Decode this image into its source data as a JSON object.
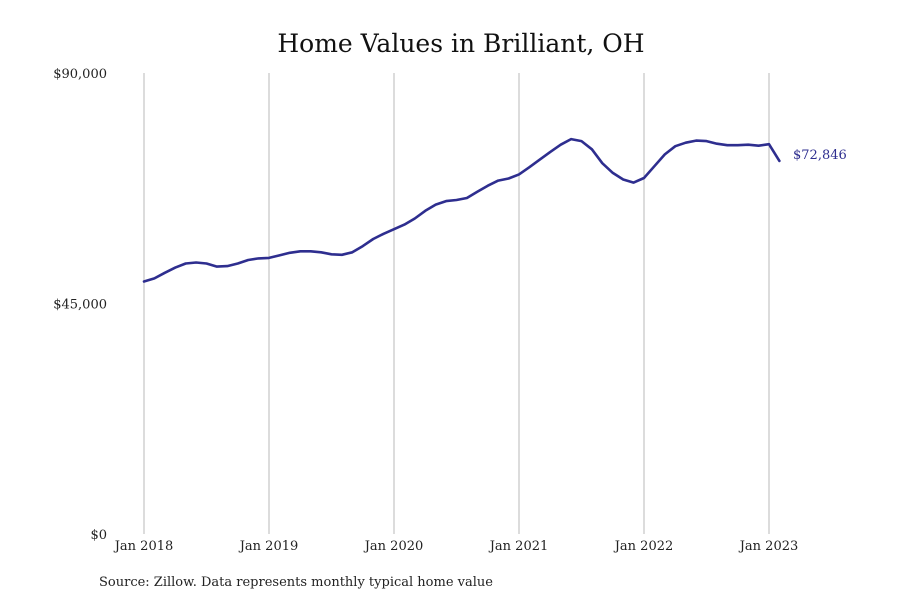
{
  "chart_data": {
    "type": "line",
    "title": "Home Values in Brilliant, OH",
    "xlabel": "",
    "ylabel": "",
    "ylim": [
      0,
      90000
    ],
    "yticks": [
      {
        "value": 0,
        "label": "$0"
      },
      {
        "value": 45000,
        "label": "$45,000"
      },
      {
        "value": 90000,
        "label": "$90,000"
      }
    ],
    "xticks": [
      {
        "value": "2018-01",
        "label": "Jan 2018"
      },
      {
        "value": "2019-01",
        "label": "Jan 2019"
      },
      {
        "value": "2020-01",
        "label": "Jan 2020"
      },
      {
        "value": "2021-01",
        "label": "Jan 2021"
      },
      {
        "value": "2022-01",
        "label": "Jan 2022"
      },
      {
        "value": "2023-01",
        "label": "Jan 2023"
      }
    ],
    "grid": {
      "vertical": true,
      "horizontal": false
    },
    "legend": "none",
    "series": [
      {
        "color": "#2e2e8f",
        "x": [
          "2018-01",
          "2018-02",
          "2018-03",
          "2018-04",
          "2018-05",
          "2018-06",
          "2018-07",
          "2018-08",
          "2018-09",
          "2018-10",
          "2018-11",
          "2018-12",
          "2019-01",
          "2019-02",
          "2019-03",
          "2019-04",
          "2019-05",
          "2019-06",
          "2019-07",
          "2019-08",
          "2019-09",
          "2019-10",
          "2019-11",
          "2019-12",
          "2020-01",
          "2020-02",
          "2020-03",
          "2020-04",
          "2020-05",
          "2020-06",
          "2020-07",
          "2020-08",
          "2020-09",
          "2020-10",
          "2020-11",
          "2020-12",
          "2021-01",
          "2021-02",
          "2021-03",
          "2021-04",
          "2021-05",
          "2021-06",
          "2021-07",
          "2021-08",
          "2021-09",
          "2021-10",
          "2021-11",
          "2021-12",
          "2022-01",
          "2022-02",
          "2022-03",
          "2022-04",
          "2022-05",
          "2022-06",
          "2022-07",
          "2022-08",
          "2022-09",
          "2022-10",
          "2022-11",
          "2022-12",
          "2023-01",
          "2023-02"
        ],
        "values": [
          49300,
          49900,
          51000,
          52000,
          52800,
          53000,
          52800,
          52200,
          52300,
          52800,
          53500,
          53800,
          53900,
          54400,
          54900,
          55200,
          55200,
          55000,
          54600,
          54500,
          55000,
          56200,
          57600,
          58600,
          59500,
          60400,
          61600,
          63100,
          64300,
          65000,
          65200,
          65600,
          66800,
          68000,
          69000,
          69400,
          70200,
          71600,
          73100,
          74600,
          76000,
          77100,
          76700,
          75100,
          72400,
          70500,
          69200,
          68600,
          69500,
          71800,
          74100,
          75700,
          76400,
          76800,
          76700,
          76200,
          75900,
          75900,
          76000,
          75800,
          76100,
          72846
        ]
      }
    ],
    "end_label": "$72,846"
  },
  "source": "Source: Zillow. Data represents monthly typical home value"
}
